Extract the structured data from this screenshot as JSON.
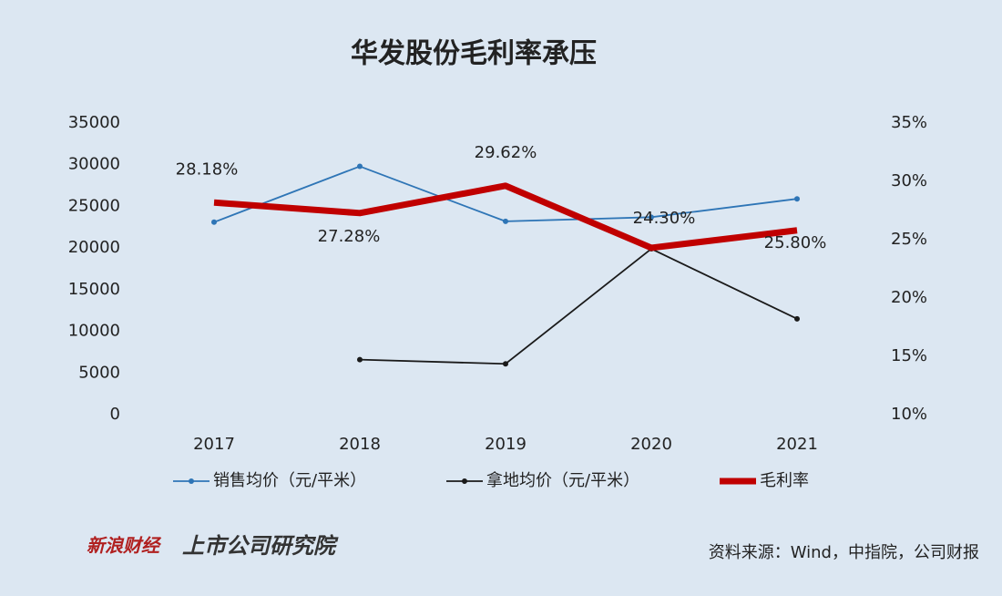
{
  "chart_data": {
    "type": "line",
    "title": "华发股份毛利率承压",
    "categories": [
      "2017",
      "2018",
      "2019",
      "2020",
      "2021"
    ],
    "series": [
      {
        "name": "销售均价（元/平米）",
        "color": "#2e75b6",
        "values": [
          23100,
          29800,
          23200,
          23700,
          25900
        ]
      },
      {
        "name": "拿地均价（元/平米）",
        "color": "#1a1a1a",
        "values": [
          null,
          6600,
          6100,
          19900,
          11500
        ]
      },
      {
        "name": "毛利率",
        "color": "#c00000",
        "axis": "y2",
        "values": [
          28.18,
          27.28,
          29.62,
          24.3,
          25.8
        ],
        "value_labels": [
          "28.18%",
          "27.28%",
          "29.62%",
          "24.30%",
          "25.80%"
        ]
      }
    ],
    "ylim": [
      0,
      35000
    ],
    "yticks": [
      0,
      5000,
      10000,
      15000,
      20000,
      25000,
      30000,
      35000
    ],
    "y2lim": [
      10,
      35
    ],
    "y2ticks": [
      {
        "value": 10,
        "label": "10%"
      },
      {
        "value": 15,
        "label": "15%"
      },
      {
        "value": 20,
        "label": "20%"
      },
      {
        "value": 25,
        "label": "25%"
      },
      {
        "value": 30,
        "label": "30%"
      },
      {
        "value": 35,
        "label": "35%"
      }
    ],
    "legend": "bottom",
    "source": "资料来源：Wind，中指院，公司财报",
    "logos": [
      "新浪财经",
      "上市公司研究院"
    ]
  }
}
